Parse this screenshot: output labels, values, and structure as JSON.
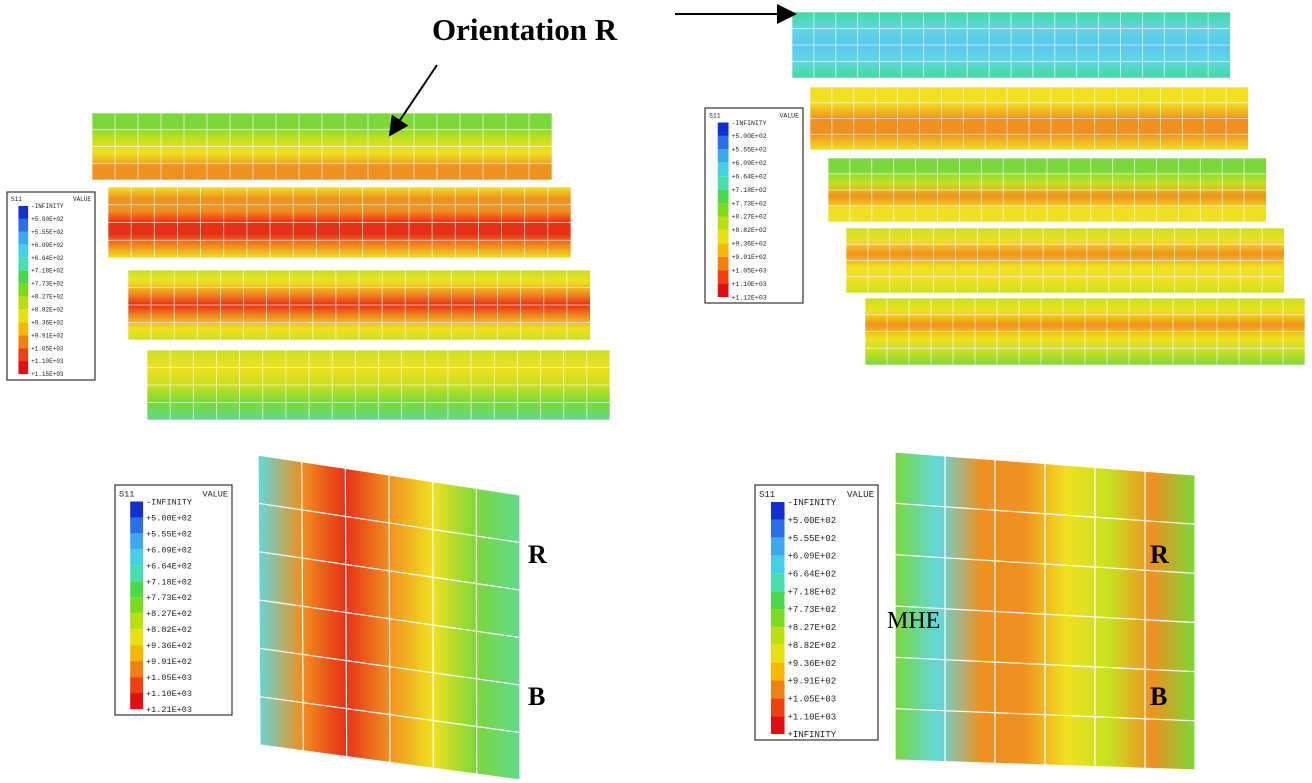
{
  "annotations": {
    "orientation": "Orientation R",
    "r_left": "R",
    "b_left": "B",
    "r_right": "R",
    "b_right": "B",
    "mhe": "MHE"
  },
  "legends": [
    {
      "title": "S11",
      "header": "VALUE",
      "labels": [
        "-INFINITY",
        "+5.00E+02",
        "+5.55E+02",
        "+6.09E+02",
        "+6.64E+02",
        "+7.18E+02",
        "+7.73E+02",
        "+8.27E+02",
        "+8.82E+02",
        "+9.36E+02",
        "+9.91E+02",
        "+1.05E+03",
        "+1.10E+03",
        "+1.15E+03"
      ]
    },
    {
      "title": "S11",
      "header": "VALUE",
      "labels": [
        "-INFINITY",
        "+5.00E+02",
        "+5.55E+02",
        "+6.09E+02",
        "+6.64E+02",
        "+7.18E+02",
        "+7.73E+02",
        "+8.27E+02",
        "+8.82E+02",
        "+9.36E+02",
        "+9.91E+02",
        "+1.05E+03",
        "+1.10E+03",
        "+1.12E+03"
      ]
    },
    {
      "title": "S11",
      "header": "VALUE",
      "labels": [
        "-INFINITY",
        "+5.00E+02",
        "+5.55E+02",
        "+6.09E+02",
        "+6.64E+02",
        "+7.18E+02",
        "+7.73E+02",
        "+8.27E+02",
        "+8.82E+02",
        "+9.36E+02",
        "+9.91E+02",
        "+1.05E+03",
        "+1.10E+03",
        "+1.21E+03"
      ]
    },
    {
      "title": "S11",
      "header": "VALUE",
      "labels": [
        "-INFINITY",
        "+5.00E+02",
        "+5.55E+02",
        "+6.09E+02",
        "+6.64E+02",
        "+7.18E+02",
        "+7.73E+02",
        "+8.27E+02",
        "+8.82E+02",
        "+9.36E+02",
        "+9.91E+02",
        "+1.05E+03",
        "+1.10E+03",
        "+INFINITY"
      ]
    }
  ]
}
